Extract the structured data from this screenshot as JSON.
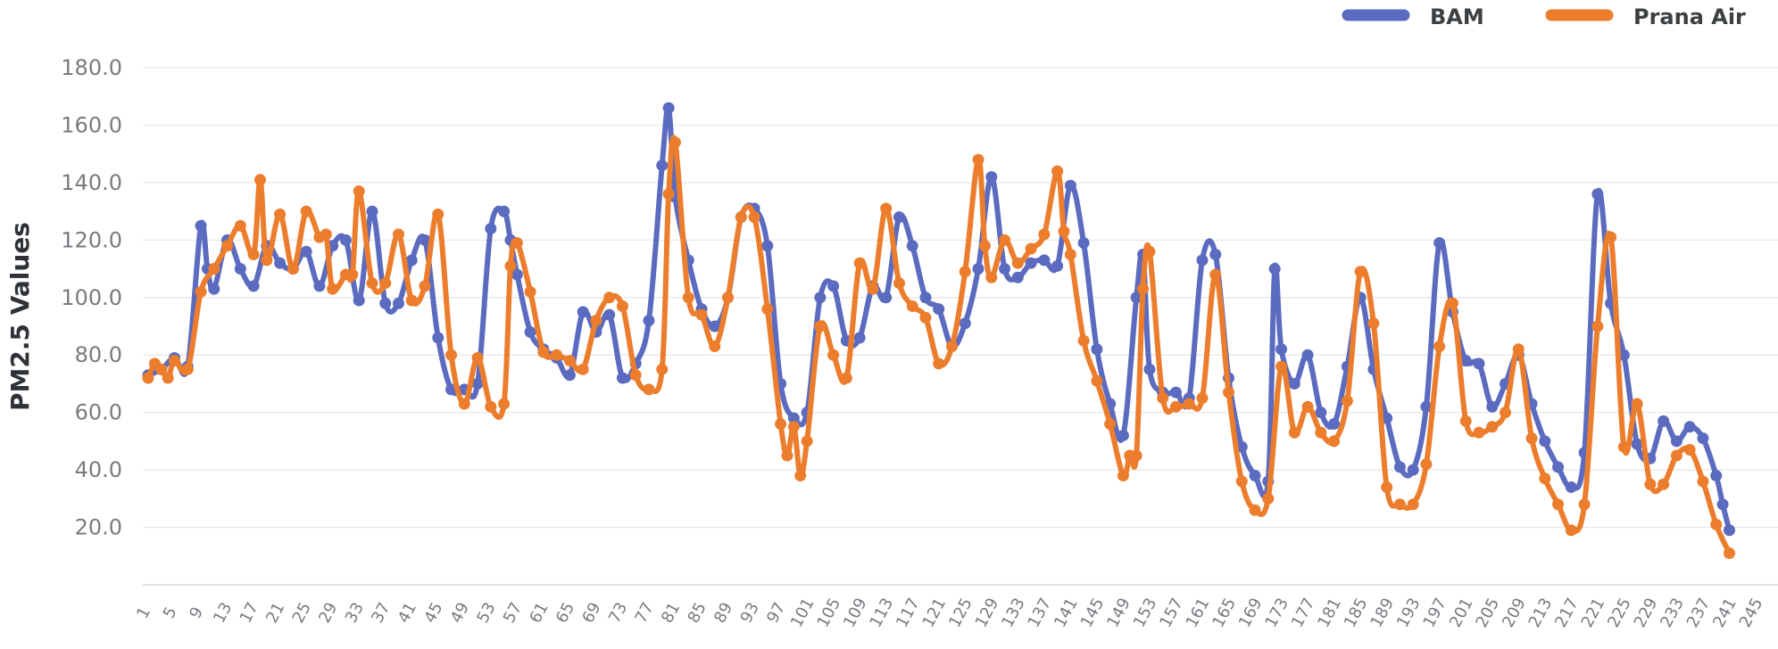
{
  "chart_data": {
    "type": "line",
    "title": "",
    "xlabel": "",
    "ylabel": "PM2.5 Values",
    "ylim": [
      0,
      180
    ],
    "ytick_values": [
      20,
      40,
      60,
      80,
      100,
      120,
      140,
      160,
      180
    ],
    "ytick_labels": [
      "20.0",
      "40.0",
      "60.0",
      "80.0",
      "100.0",
      "120.0",
      "140.0",
      "160.0",
      "180.0"
    ],
    "x_min": 1,
    "x_max": 245,
    "xtick_values": [
      1,
      5,
      9,
      13,
      17,
      21,
      25,
      29,
      33,
      37,
      41,
      45,
      49,
      53,
      57,
      61,
      65,
      69,
      73,
      77,
      81,
      85,
      89,
      93,
      97,
      101,
      105,
      109,
      113,
      117,
      121,
      125,
      129,
      133,
      137,
      141,
      145,
      149,
      153,
      157,
      161,
      165,
      169,
      173,
      177,
      181,
      185,
      189,
      193,
      197,
      201,
      205,
      209,
      213,
      217,
      221,
      225,
      229,
      233,
      237,
      241,
      245
    ],
    "grid": true,
    "legend_position": "top-right",
    "series": [
      {
        "name": "BAM",
        "color": "#5b6bbf",
        "x": [
          1,
          3,
          5,
          7,
          9,
          10,
          11,
          13,
          15,
          17,
          19,
          21,
          23,
          25,
          27,
          29,
          31,
          33,
          35,
          37,
          39,
          41,
          43,
          45,
          47,
          49,
          51,
          53,
          55,
          56,
          57,
          59,
          61,
          63,
          65,
          67,
          69,
          71,
          73,
          75,
          77,
          79,
          80,
          81,
          83,
          85,
          87,
          89,
          91,
          93,
          95,
          97,
          99,
          101,
          103,
          105,
          107,
          109,
          111,
          113,
          115,
          117,
          119,
          121,
          123,
          125,
          127,
          129,
          131,
          133,
          135,
          137,
          139,
          141,
          143,
          145,
          147,
          149,
          151,
          152,
          153,
          155,
          157,
          159,
          161,
          163,
          165,
          167,
          169,
          171,
          172,
          173,
          175,
          177,
          179,
          181,
          183,
          185,
          187,
          189,
          191,
          193,
          195,
          197,
          199,
          201,
          203,
          205,
          207,
          209,
          211,
          213,
          215,
          217,
          219,
          221,
          223,
          225,
          227,
          229,
          231,
          233,
          235,
          237,
          239,
          240,
          241
        ],
        "values": [
          73,
          75,
          79,
          76,
          125,
          110,
          103,
          120,
          110,
          104,
          118,
          112,
          110,
          116,
          104,
          118,
          120,
          99,
          130,
          98,
          98,
          113,
          120,
          86,
          68,
          68,
          70,
          124,
          130,
          120,
          108,
          88,
          82,
          79,
          73,
          95,
          88,
          94,
          72,
          77,
          92,
          146,
          166,
          135,
          113,
          96,
          90,
          100,
          128,
          131,
          118,
          70,
          58,
          60,
          100,
          104,
          85,
          86,
          104,
          100,
          128,
          118,
          100,
          96,
          83,
          91,
          110,
          142,
          110,
          107,
          112,
          113,
          111,
          139,
          119,
          82,
          63,
          52,
          100,
          115,
          75,
          67,
          67,
          65,
          113,
          115,
          72,
          48,
          38,
          36,
          110,
          82,
          70,
          80,
          60,
          56,
          76,
          100,
          75,
          58,
          41,
          40,
          62,
          119,
          95,
          78,
          77,
          62,
          70,
          80,
          63,
          50,
          41,
          34,
          46,
          136,
          98,
          80,
          49,
          44,
          57,
          50,
          55,
          51,
          38,
          28,
          19
        ]
      },
      {
        "name": "Prana Air",
        "color": "#ec7d2c",
        "x": [
          1,
          2,
          3,
          4,
          5,
          7,
          9,
          11,
          13,
          15,
          17,
          18,
          19,
          21,
          23,
          25,
          27,
          28,
          29,
          31,
          32,
          33,
          35,
          37,
          39,
          41,
          43,
          45,
          47,
          49,
          51,
          53,
          55,
          56,
          57,
          59,
          61,
          63,
          65,
          67,
          69,
          71,
          73,
          75,
          77,
          79,
          80,
          81,
          83,
          85,
          87,
          89,
          91,
          93,
          95,
          97,
          98,
          99,
          100,
          101,
          103,
          105,
          107,
          109,
          111,
          113,
          115,
          117,
          119,
          121,
          123,
          125,
          127,
          128,
          129,
          131,
          133,
          135,
          137,
          139,
          140,
          141,
          143,
          145,
          147,
          149,
          150,
          151,
          152,
          153,
          155,
          157,
          159,
          161,
          163,
          165,
          167,
          169,
          171,
          173,
          175,
          177,
          179,
          181,
          183,
          185,
          187,
          189,
          191,
          193,
          195,
          197,
          199,
          201,
          203,
          205,
          207,
          209,
          211,
          213,
          215,
          217,
          219,
          221,
          223,
          225,
          227,
          229,
          231,
          233,
          235,
          237,
          239,
          241
        ],
        "values": [
          72,
          77,
          75,
          72,
          78,
          75,
          102,
          110,
          118,
          125,
          115,
          141,
          113,
          129,
          110,
          130,
          121,
          122,
          103,
          108,
          108,
          137,
          105,
          105,
          122,
          99,
          104,
          129,
          80,
          63,
          79,
          62,
          63,
          111,
          119,
          102,
          81,
          80,
          78,
          75,
          92,
          100,
          97,
          73,
          68,
          75,
          136,
          154,
          100,
          94,
          83,
          100,
          128,
          128,
          96,
          56,
          45,
          55,
          38,
          50,
          90,
          80,
          72,
          112,
          103,
          131,
          105,
          97,
          93,
          77,
          83,
          109,
          148,
          118,
          107,
          120,
          112,
          117,
          122,
          144,
          123,
          115,
          85,
          71,
          56,
          38,
          45,
          45,
          103,
          116,
          65,
          62,
          63,
          65,
          108,
          67,
          36,
          26,
          30,
          76,
          53,
          62,
          53,
          50,
          64,
          109,
          91,
          34,
          28,
          28,
          42,
          83,
          98,
          57,
          53,
          55,
          60,
          82,
          51,
          37,
          28,
          19,
          28,
          90,
          121,
          48,
          63,
          35,
          35,
          45,
          47,
          36,
          21,
          11
        ]
      }
    ]
  }
}
